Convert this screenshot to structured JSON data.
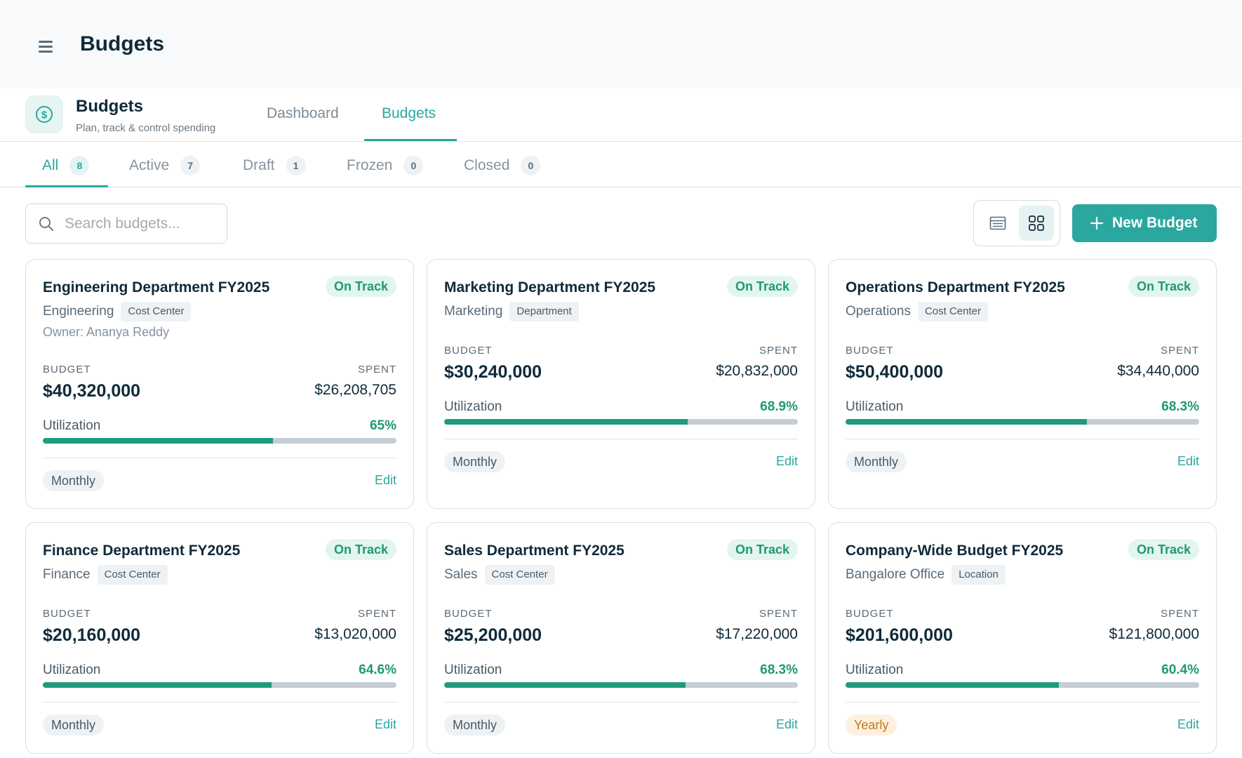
{
  "header": {
    "title": "Budgets",
    "menu_icon": "hamburger-menu-icon"
  },
  "app": {
    "name": "Budgets",
    "subtitle": "Plan, track & control spending",
    "icon": "dollar-circle-icon",
    "tabs": [
      {
        "label": "Dashboard",
        "active": false
      },
      {
        "label": "Budgets",
        "active": true
      }
    ]
  },
  "filters": [
    {
      "label": "All",
      "count": "8",
      "active": true
    },
    {
      "label": "Active",
      "count": "7",
      "active": false
    },
    {
      "label": "Draft",
      "count": "1",
      "active": false
    },
    {
      "label": "Frozen",
      "count": "0",
      "active": false
    },
    {
      "label": "Closed",
      "count": "0",
      "active": false
    }
  ],
  "search": {
    "placeholder": "Search budgets...",
    "value": ""
  },
  "toolbar": {
    "new_label": "New Budget",
    "view_mode": "grid"
  },
  "labels": {
    "budget": "BUDGET",
    "spent": "SPENT",
    "utilization": "Utilization",
    "edit": "Edit"
  },
  "colors": {
    "accent": "#2aa8a0",
    "on_track": "#1f9a6e",
    "progress": "#1f9a7e",
    "yearly": "#c0791f"
  },
  "cards": [
    {
      "title": "Engineering Department FY2025",
      "status": "On Track",
      "dept": "Engineering",
      "tag": "Cost Center",
      "owner": "Owner: Ananya Reddy",
      "budget": "$40,320,000",
      "spent": "$26,208,705",
      "util_pct": "65%",
      "util_value": 65,
      "period": "Monthly"
    },
    {
      "title": "Marketing Department FY2025",
      "status": "On Track",
      "dept": "Marketing",
      "tag": "Department",
      "owner": "",
      "budget": "$30,240,000",
      "spent": "$20,832,000",
      "util_pct": "68.9%",
      "util_value": 68.9,
      "period": "Monthly"
    },
    {
      "title": "Operations Department FY2025",
      "status": "On Track",
      "dept": "Operations",
      "tag": "Cost Center",
      "owner": "",
      "budget": "$50,400,000",
      "spent": "$34,440,000",
      "util_pct": "68.3%",
      "util_value": 68.3,
      "period": "Monthly"
    },
    {
      "title": "Finance Department FY2025",
      "status": "On Track",
      "dept": "Finance",
      "tag": "Cost Center",
      "owner": "",
      "budget": "$20,160,000",
      "spent": "$13,020,000",
      "util_pct": "64.6%",
      "util_value": 64.6,
      "period": "Monthly"
    },
    {
      "title": "Sales Department FY2025",
      "status": "On Track",
      "dept": "Sales",
      "tag": "Cost Center",
      "owner": "",
      "budget": "$25,200,000",
      "spent": "$17,220,000",
      "util_pct": "68.3%",
      "util_value": 68.3,
      "period": "Monthly"
    },
    {
      "title": "Company-Wide Budget FY2025",
      "status": "On Track",
      "dept": "Bangalore Office",
      "tag": "Location",
      "owner": "",
      "budget": "$201,600,000",
      "spent": "$121,800,000",
      "util_pct": "60.4%",
      "util_value": 60.4,
      "period": "Yearly"
    }
  ]
}
